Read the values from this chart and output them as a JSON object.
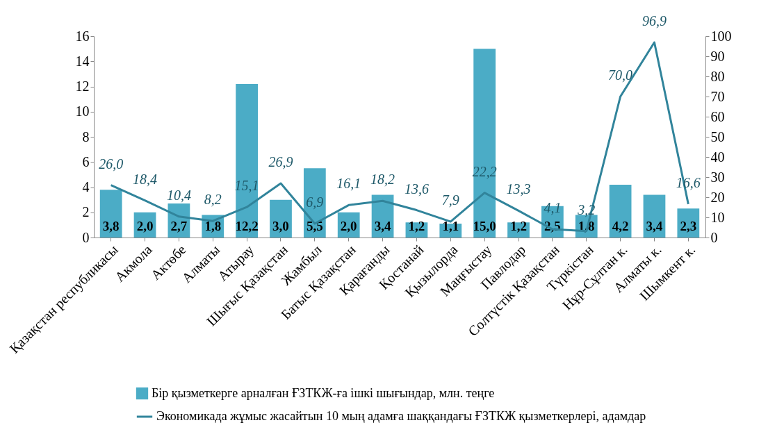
{
  "chart_data": {
    "type": "bar",
    "categories": [
      "Қазақстан республикасы",
      "Акмола",
      "Актөбе",
      "Алматы",
      "Атырау",
      "Шығыс Қазақстан",
      "Жамбыл",
      "Батыс Қазақстан",
      "Қарағанды",
      "Қостанай",
      "Қызылорда",
      "Маңғыстау",
      "Павлодар",
      "Солтүстік Қазақстан",
      "Түркістан",
      "Нұр-Сұлтан к.",
      "Алматы к.",
      "Шымкент к."
    ],
    "series": [
      {
        "name": "Бір қызметкерге арналған ҒЗТКЖ-ға ішкі шығындар, млн. теңге",
        "color": "#4bacc6",
        "values": [
          3.8,
          2.0,
          2.7,
          1.8,
          12.2,
          3.0,
          5.5,
          2.0,
          3.4,
          1.2,
          1.1,
          15.0,
          1.2,
          2.5,
          1.8,
          4.2,
          3.4,
          2.3
        ],
        "value_labels": [
          "3,8",
          "2,0",
          "2,7",
          "1,8",
          "12,2",
          "3,0",
          "5,5",
          "2,0",
          "3,4",
          "1,2",
          "1,1",
          "15,0",
          "1,2",
          "2,5",
          "1,8",
          "4,2",
          "3,4",
          "2,3"
        ]
      },
      {
        "name": "Экономикада жұмыс жасайтын 10 мың адамға шаққандағы ҒЗТКЖ қызметкерлері, адамдар",
        "type": "line",
        "axis": "y2",
        "color": "#31849b",
        "values": [
          26.0,
          18.4,
          10.4,
          8.2,
          15.1,
          26.9,
          6.9,
          16.1,
          18.2,
          13.6,
          7.9,
          22.2,
          13.3,
          4.1,
          3.2,
          70.0,
          96.9,
          16.6
        ],
        "value_labels": [
          "26,0",
          "18,4",
          "10,4",
          "8,2",
          "15,1",
          "26,9",
          "6,9",
          "16,1",
          "18,2",
          "13,6",
          "7,9",
          "22,2",
          "13,3",
          "4,1",
          "3,2",
          "70,0",
          "96,9",
          "16,6"
        ]
      }
    ],
    "ylim": [
      0,
      16
    ],
    "yticks": [
      0,
      2,
      4,
      6,
      8,
      10,
      12,
      14,
      16
    ],
    "y2lim": [
      0,
      100
    ],
    "y2ticks": [
      0,
      10,
      20,
      30,
      40,
      50,
      60,
      70,
      80,
      90,
      100
    ],
    "grid": false,
    "legend": "bottom"
  }
}
